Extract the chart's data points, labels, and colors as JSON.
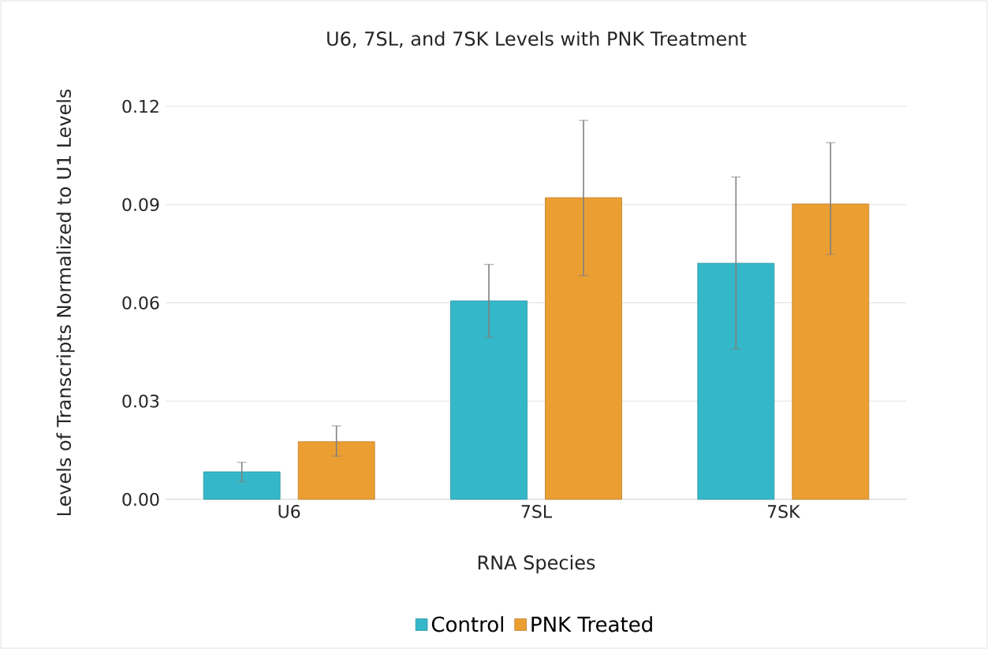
{
  "chart_data": {
    "type": "bar",
    "title": "U6, 7SL, and 7SK Levels with PNK Treatment",
    "xlabel": "RNA Species",
    "ylabel": "Levels of Transcripts Normalized to U1 Levels",
    "categories": [
      "U6",
      "7SL",
      "7SK"
    ],
    "series": [
      {
        "name": "Control",
        "color": "#34b8c9",
        "values": [
          0.0084,
          0.0606,
          0.0721
        ],
        "errors": [
          [
            0.0053,
            0.0113
          ],
          [
            0.0495,
            0.0717
          ],
          [
            0.0459,
            0.0984
          ]
        ]
      },
      {
        "name": "PNK Treated",
        "color": "#eb9f33",
        "values": [
          0.0176,
          0.0921,
          0.0902
        ],
        "errors": [
          [
            0.0132,
            0.0224
          ],
          [
            0.0683,
            0.1157
          ],
          [
            0.0748,
            0.1089
          ]
        ]
      }
    ],
    "ylim": [
      0,
      0.12
    ],
    "yticks": [
      {
        "value": 0,
        "label": "0.00"
      },
      {
        "value": 0.03,
        "label": "0.03"
      },
      {
        "value": 0.06,
        "label": "0.06"
      },
      {
        "value": 0.09,
        "label": "0.09"
      },
      {
        "value": 0.12,
        "label": "0.12"
      }
    ],
    "grid": "y",
    "legend": "bottom"
  }
}
